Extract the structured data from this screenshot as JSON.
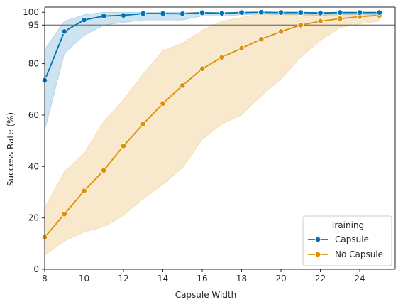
{
  "chart_data": {
    "type": "line",
    "xlabel": "Capsule Width",
    "ylabel": "Success Rate (%)",
    "xlim": [
      8,
      25.8
    ],
    "ylim": [
      0,
      102
    ],
    "xticks": [
      8,
      10,
      12,
      14,
      16,
      18,
      20,
      22,
      24
    ],
    "yticks": [
      0,
      20,
      40,
      60,
      80,
      95,
      100
    ],
    "reference_line": {
      "y": 95,
      "color": "#808080"
    },
    "grid": false,
    "legend": {
      "title": "Training",
      "placement": "lower-right"
    },
    "x": [
      8,
      9,
      10,
      11,
      12,
      13,
      14,
      15,
      16,
      17,
      18,
      19,
      20,
      21,
      22,
      23,
      24,
      25
    ],
    "series": [
      {
        "name": "Capsule",
        "color": "#0173b2",
        "values": [
          73.5,
          92.5,
          97.0,
          98.5,
          98.8,
          99.5,
          99.5,
          99.4,
          99.8,
          99.6,
          99.9,
          100.0,
          99.9,
          99.9,
          99.7,
          99.9,
          99.9,
          99.9
        ],
        "ci_low": [
          54.0,
          84.0,
          91.0,
          95.0,
          96.0,
          97.0,
          97.0,
          97.0,
          98.5,
          98.5,
          99.0,
          99.3,
          99.0,
          99.0,
          98.8,
          99.0,
          99.0,
          99.0
        ],
        "ci_high": [
          85.5,
          96.5,
          99.0,
          100.0,
          100.0,
          100.0,
          100.0,
          100.0,
          100.0,
          100.0,
          100.0,
          100.0,
          100.0,
          100.0,
          100.0,
          100.0,
          100.0,
          100.0
        ]
      },
      {
        "name": "No Capsule",
        "color": "#de8f05",
        "values": [
          12.5,
          21.5,
          30.5,
          38.5,
          48.0,
          56.5,
          64.5,
          71.5,
          78.0,
          82.5,
          86.0,
          89.5,
          92.5,
          95.0,
          96.5,
          97.5,
          98.3,
          98.8
        ],
        "ci_low": [
          5.5,
          11.0,
          14.5,
          16.5,
          21.0,
          27.5,
          33.0,
          39.5,
          50.5,
          56.5,
          60.0,
          67.5,
          74.0,
          82.5,
          89.0,
          94.0,
          95.5,
          96.5
        ],
        "ci_high": [
          24.0,
          38.0,
          45.0,
          57.5,
          66.0,
          76.0,
          85.0,
          88.0,
          93.0,
          96.5,
          98.0,
          99.5,
          100.0,
          100.0,
          100.0,
          100.0,
          100.0,
          100.0
        ]
      }
    ]
  }
}
